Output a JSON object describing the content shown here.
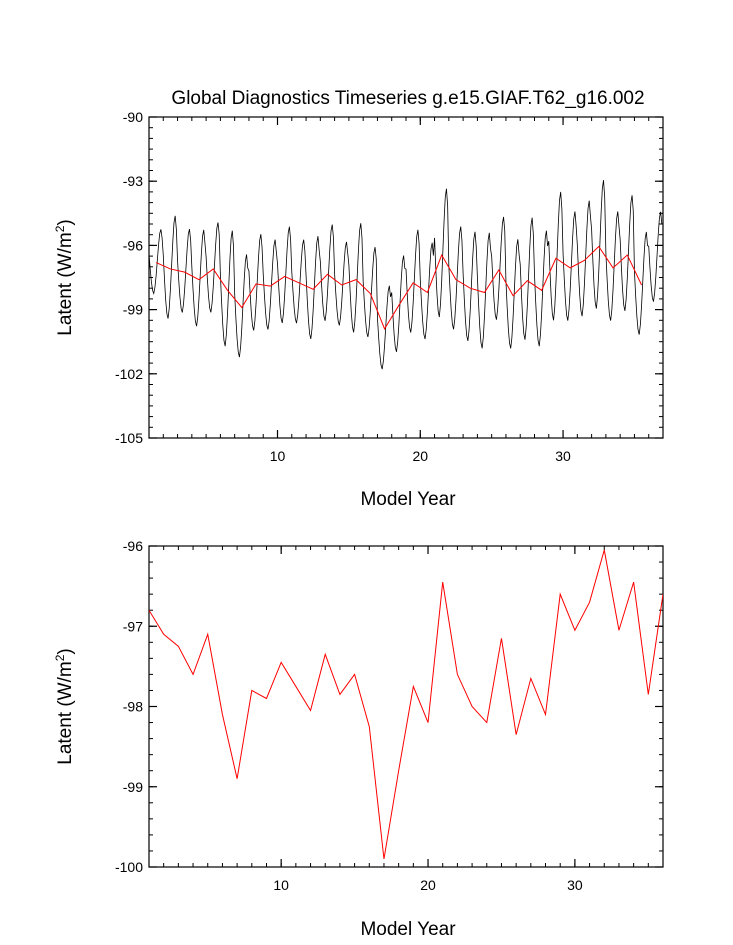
{
  "figure_title": "Global Diagnostics Timeseries g.e15.GIAF.T62_g16.002",
  "chart_data": [
    {
      "type": "line",
      "title": "Global Diagnostics Timeseries g.e15.GIAF.T62_g16.002",
      "xlabel": "Model Year",
      "ylabel_main": "Latent (W/m",
      "ylabel_sup": "2",
      "ylabel_close": ")",
      "xlim": [
        1,
        37
      ],
      "ylim": [
        -105,
        -90
      ],
      "xticks": [
        10,
        20,
        30
      ],
      "xtick_labels": [
        "10",
        "20",
        "30"
      ],
      "yticks": [
        -105,
        -102,
        -99,
        -96,
        -93,
        -90
      ],
      "ytick_labels": [
        "-105",
        "-102",
        "-99",
        "-96",
        "-93",
        "-90"
      ],
      "series": [
        {
          "name": "monthly",
          "color": "#000000",
          "pattern": [
            0.8,
            -0.6,
            -1.8,
            -2.6,
            -2.9,
            -2.3,
            -1.2,
            0.2,
            1.6,
            2.7,
            3.1,
            2.3
          ],
          "annual_means": [
            -96.8,
            -97.1,
            -97.25,
            -97.6,
            -97.1,
            -98.1,
            -98.9,
            -97.8,
            -97.9,
            -97.45,
            -97.75,
            -98.05,
            -97.35,
            -97.85,
            -97.6,
            -98.25,
            -99.9,
            -98.8,
            -97.75,
            -98.2,
            -96.45,
            -97.6,
            -98.0,
            -98.2,
            -97.15,
            -98.35,
            -97.65,
            -98.1,
            -96.6,
            -97.05,
            -96.7,
            -96.05,
            -97.05,
            -96.45,
            -97.85,
            -96.6
          ],
          "amplitudes": [
            1.0,
            1.6,
            1.3,
            1.5,
            1.4,
            1.8,
            1.6,
            1.5,
            1.4,
            1.5,
            1.3,
            1.6,
            1.5,
            1.3,
            1.7,
            1.4,
            1.3,
            1.5,
            1.6,
            1.5,
            2.0,
            1.6,
            1.7,
            1.8,
            1.6,
            1.7,
            1.9,
            1.8,
            2.0,
            1.7,
            1.8,
            2.0,
            1.7,
            1.8,
            1.6,
            1.4
          ]
        },
        {
          "name": "annual mean",
          "color": "#ff0000",
          "x": [
            1.5,
            2.5,
            3.5,
            4.5,
            5.5,
            6.5,
            7.5,
            8.5,
            9.5,
            10.5,
            11.5,
            12.5,
            13.5,
            14.5,
            15.5,
            16.5,
            17.5,
            18.5,
            19.5,
            20.5,
            21.5,
            22.5,
            23.5,
            24.5,
            25.5,
            26.5,
            27.5,
            28.5,
            29.5,
            30.5,
            31.5,
            32.5,
            33.5,
            34.5,
            35.5
          ],
          "values": [
            -96.8,
            -97.1,
            -97.25,
            -97.6,
            -97.1,
            -98.1,
            -98.9,
            -97.8,
            -97.9,
            -97.45,
            -97.75,
            -98.05,
            -97.35,
            -97.85,
            -97.6,
            -98.25,
            -99.9,
            -98.8,
            -97.75,
            -98.2,
            -96.45,
            -97.6,
            -98.0,
            -98.2,
            -97.15,
            -98.35,
            -97.65,
            -98.1,
            -96.6,
            -97.05,
            -96.7,
            -96.05,
            -97.05,
            -96.45,
            -97.85
          ]
        }
      ]
    },
    {
      "type": "line",
      "title": "",
      "xlabel": "Model Year",
      "ylabel_main": "Latent (W/m",
      "ylabel_sup": "2",
      "ylabel_close": ")",
      "xlim": [
        1,
        36
      ],
      "ylim": [
        -100,
        -96
      ],
      "xticks": [
        10,
        20,
        30
      ],
      "xtick_labels": [
        "10",
        "20",
        "30"
      ],
      "yticks": [
        -100,
        -99,
        -98,
        -97,
        -96
      ],
      "ytick_labels": [
        "-100",
        "-99",
        "-98",
        "-97",
        "-96"
      ],
      "series": [
        {
          "name": "annual mean",
          "color": "#ff0000",
          "x": [
            1,
            2,
            3,
            4,
            5,
            6,
            7,
            8,
            9,
            10,
            11,
            12,
            13,
            14,
            15,
            16,
            17,
            18,
            19,
            20,
            21,
            22,
            23,
            24,
            25,
            26,
            27,
            28,
            29,
            30,
            31,
            32,
            33,
            34,
            35,
            36
          ],
          "values": [
            -96.8,
            -97.1,
            -97.25,
            -97.6,
            -97.1,
            -98.1,
            -98.9,
            -97.8,
            -97.9,
            -97.45,
            -97.75,
            -98.05,
            -97.35,
            -97.85,
            -97.6,
            -98.25,
            -99.9,
            -98.8,
            -97.75,
            -98.2,
            -96.45,
            -97.6,
            -98.0,
            -98.2,
            -97.15,
            -98.35,
            -97.65,
            -98.1,
            -96.6,
            -97.05,
            -96.7,
            -96.05,
            -97.05,
            -96.45,
            -97.85,
            -96.6
          ]
        }
      ]
    }
  ]
}
